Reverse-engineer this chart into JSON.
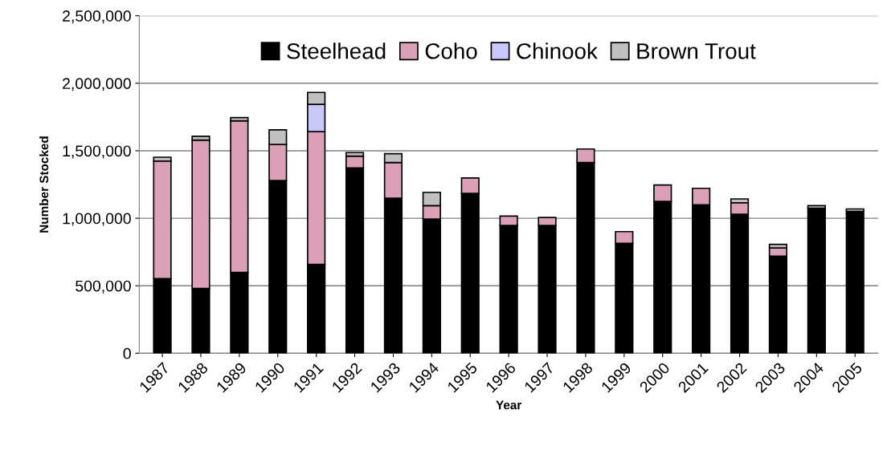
{
  "chart_data": {
    "type": "bar",
    "stacked": true,
    "xlabel": "Year",
    "ylabel": "Number Stocked",
    "categories": [
      "1987",
      "1988",
      "1989",
      "1990",
      "1991",
      "1992",
      "1993",
      "1994",
      "1995",
      "1996",
      "1997",
      "1998",
      "1999",
      "2000",
      "2001",
      "2002",
      "2003",
      "2004",
      "2005"
    ],
    "series": [
      {
        "name": "Steelhead",
        "color": "#000000",
        "values": [
          553000,
          480000,
          599000,
          1280000,
          659000,
          1373000,
          1149000,
          994000,
          1184000,
          946000,
          946000,
          1413000,
          815000,
          1125000,
          1099000,
          1030000,
          720000,
          1075000,
          1050000
        ]
      },
      {
        "name": "Coho",
        "color": "#d9a0b8",
        "values": [
          871000,
          1099000,
          1123000,
          266000,
          982000,
          87000,
          264000,
          99000,
          114000,
          70000,
          60000,
          100000,
          86000,
          121000,
          123000,
          85000,
          60000,
          null,
          null
        ]
      },
      {
        "name": "Chinook",
        "color": "#c8c8f8",
        "values": [
          null,
          null,
          null,
          null,
          202000,
          null,
          null,
          null,
          null,
          null,
          null,
          null,
          null,
          null,
          null,
          null,
          null,
          null,
          null
        ]
      },
      {
        "name": "Brown Trout",
        "color": "#c0c0c0",
        "values": [
          28000,
          28000,
          23000,
          109000,
          89000,
          26000,
          65000,
          99000,
          null,
          null,
          null,
          null,
          null,
          null,
          null,
          28000,
          27000,
          18000,
          19000
        ]
      }
    ],
    "ylim": [
      0,
      2500000
    ],
    "yticks": [
      {
        "value": 0,
        "label": "0"
      },
      {
        "value": 500000,
        "label": "500,000"
      },
      {
        "value": 1000000,
        "label": "1,000,000"
      },
      {
        "value": 1500000,
        "label": "1,500,000"
      },
      {
        "value": 2000000,
        "label": "2,000,000"
      },
      {
        "value": 2500000,
        "label": "2,500,000"
      }
    ],
    "grid": "y",
    "legend": "top"
  }
}
